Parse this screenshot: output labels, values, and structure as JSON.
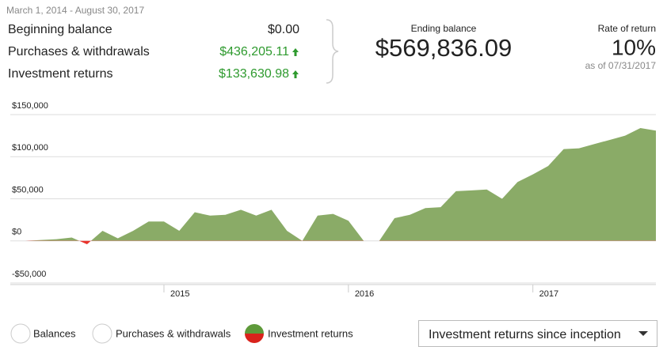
{
  "period": "March 1, 2014 - August 30, 2017",
  "summary": [
    {
      "label": "Beginning balance",
      "value": "$0.00"
    },
    {
      "label": "Purchases & withdrawals",
      "value": "$436,205.11"
    },
    {
      "label": "Investment returns",
      "value": "$133,630.98"
    }
  ],
  "ending_balance": {
    "label": "Ending balance",
    "value": "$569,836.09"
  },
  "rate_of_return": {
    "label": "Rate of return",
    "value": "10%",
    "note": "as of 07/31/2017"
  },
  "view_options": [
    "Balances",
    "Purchases & withdrawals",
    "Investment returns"
  ],
  "dropdown": "Investment returns since inception",
  "chart_data": {
    "type": "area",
    "x": [
      2014.167,
      2014.25,
      2014.333,
      2014.417,
      2014.5,
      2014.583,
      2014.667,
      2014.75,
      2014.833,
      2014.917,
      2015,
      2015.083,
      2015.167,
      2015.25,
      2015.333,
      2015.417,
      2015.5,
      2015.583,
      2015.667,
      2015.75,
      2015.833,
      2015.917,
      2016,
      2016.083,
      2016.167,
      2016.25,
      2016.333,
      2016.417,
      2016.5,
      2016.583,
      2016.667,
      2016.75,
      2016.833,
      2016.917,
      2017,
      2017.083,
      2017.167,
      2017.25,
      2017.333,
      2017.417,
      2017.5,
      2017.583,
      2017.667
    ],
    "values": [
      0,
      0,
      1000,
      2000,
      4000,
      -4000,
      12000,
      3000,
      12000,
      23000,
      23000,
      12000,
      34000,
      30000,
      31000,
      37000,
      30000,
      37000,
      12000,
      0,
      30000,
      32000,
      24000,
      0,
      0,
      27000,
      31000,
      39000,
      40000,
      59000,
      60000,
      61000,
      50000,
      70000,
      79000,
      89000,
      109000,
      110000,
      115000,
      120000,
      125000,
      134000,
      131000
    ],
    "color": "#8aab67",
    "negative_color": "#e8322b",
    "xlim": [
      2014.167,
      2017.667
    ],
    "xticks": [
      2015,
      2016,
      2017
    ],
    "ylim": [
      -50000,
      150000
    ],
    "yticks": [
      {
        "value": -50000,
        "label": "-$50,000"
      },
      {
        "value": 0,
        "label": "$0"
      },
      {
        "value": 50000,
        "label": "$50,000"
      },
      {
        "value": 100000,
        "label": "$100,000"
      },
      {
        "value": 150000,
        "label": "$150,000"
      }
    ],
    "grid": true
  }
}
